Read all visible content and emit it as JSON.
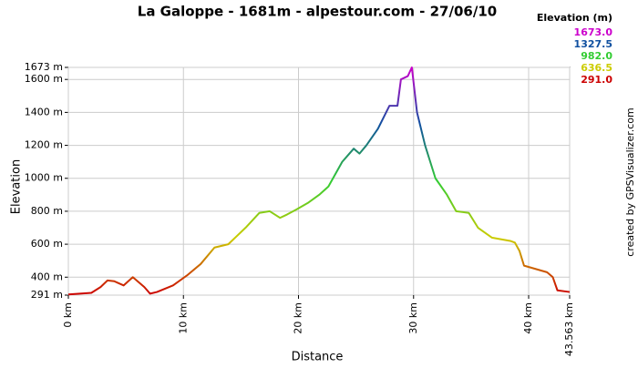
{
  "chart_data": {
    "type": "line",
    "title": "La Galoppe - 1681m - alpestour.com - 27/06/10",
    "x_label": "Distance",
    "y_label": "Elevation",
    "credit": "created by GPSVisualizer.com",
    "legend_title": "Elevation (m)",
    "color_scale": [
      {
        "value": 1673,
        "label": "1673.0",
        "color": "#cc00cc"
      },
      {
        "value": 1327.5,
        "label": "1327.5",
        "color": "#1050a0"
      },
      {
        "value": 982,
        "label": "982.0",
        "color": "#33cc33"
      },
      {
        "value": 636.5,
        "label": "636.5",
        "color": "#cccc00"
      },
      {
        "value": 291,
        "label": "291.0",
        "color": "#cc0000"
      }
    ],
    "grid": true,
    "xlim": [
      0,
      43.563
    ],
    "ylim": [
      291,
      1673
    ],
    "xticks": [
      {
        "value": 0,
        "label": "0 km"
      },
      {
        "value": 10,
        "label": "10 km"
      },
      {
        "value": 20,
        "label": "20 km"
      },
      {
        "value": 30,
        "label": "30 km"
      },
      {
        "value": 40,
        "label": "40 km"
      },
      {
        "value": 43.563,
        "label": "43.563 km"
      }
    ],
    "yticks": [
      {
        "value": 291,
        "label": "291 m"
      },
      {
        "value": 400,
        "label": "400 m"
      },
      {
        "value": 600,
        "label": "600 m"
      },
      {
        "value": 800,
        "label": "800 m"
      },
      {
        "value": 1000,
        "label": "1000 m"
      },
      {
        "value": 1200,
        "label": "1200 m"
      },
      {
        "value": 1400,
        "label": "1400 m"
      },
      {
        "value": 1600,
        "label": "1600 m"
      },
      {
        "value": 1673,
        "label": "1673 m"
      }
    ],
    "x": [
      0,
      1.0,
      2.0,
      2.8,
      3.4,
      4.0,
      4.8,
      5.6,
      6.6,
      7.1,
      7.7,
      9.1,
      10.3,
      11.5,
      12.7,
      13.9,
      15.4,
      16.6,
      17.5,
      18.4,
      19.0,
      19.8,
      20.8,
      21.8,
      22.6,
      23.8,
      24.8,
      25.3,
      25.9,
      26.9,
      27.9,
      28.6,
      28.9,
      29.5,
      29.85,
      30.3,
      31.0,
      31.9,
      32.9,
      33.7,
      34.8,
      35.6,
      36.8,
      38.4,
      38.8,
      39.2,
      39.6,
      40.6,
      41.6,
      42.1,
      42.5,
      43.563
    ],
    "values": [
      295,
      300,
      305,
      340,
      380,
      375,
      350,
      400,
      340,
      300,
      310,
      350,
      410,
      480,
      580,
      600,
      700,
      790,
      800,
      760,
      780,
      810,
      850,
      900,
      950,
      1100,
      1180,
      1150,
      1200,
      1300,
      1440,
      1440,
      1600,
      1620,
      1673,
      1400,
      1200,
      1000,
      900,
      800,
      790,
      700,
      640,
      620,
      610,
      560,
      470,
      450,
      430,
      400,
      320,
      310
    ]
  }
}
